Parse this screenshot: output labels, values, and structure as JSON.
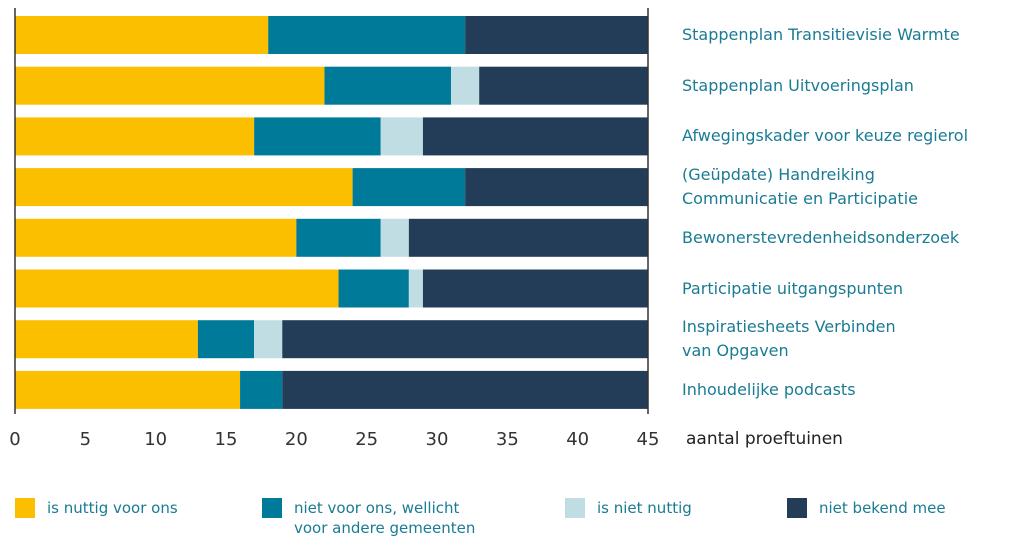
{
  "chart_data": {
    "type": "stacked-bar-horizontal",
    "categories": [
      "Stappenplan Transitievisie Warmte",
      "Stappenplan Uitvoeringsplan",
      "Afwegingskader voor keuze regierol",
      "(Geüpdate) Handreiking\nCommunicatie en Participatie",
      "Bewonerstevredenheidsonderzoek",
      "Participatie uitgangspunten",
      "Inspiratiesheets Verbinden\nvan Opgaven",
      "Inhoudelijke podcasts"
    ],
    "series": [
      {
        "name": "is nuttig voor ons",
        "color": "#fbbf00",
        "values": [
          18,
          22,
          17,
          24,
          20,
          23,
          13,
          16
        ]
      },
      {
        "name": "niet voor ons, wellicht\nvoor andere gemeenten",
        "color": "#007a99",
        "values": [
          14,
          9,
          9,
          8,
          6,
          5,
          4,
          3
        ]
      },
      {
        "name": "is niet nuttig",
        "color": "#c0dde4",
        "values": [
          0,
          2,
          3,
          0,
          2,
          1,
          2,
          0
        ]
      },
      {
        "name": "niet bekend  mee",
        "color": "#233c58",
        "values": [
          13,
          12,
          16,
          13,
          17,
          16,
          26,
          26
        ]
      }
    ],
    "xlabel": "aantal proeftuinen",
    "xlim": [
      0,
      45
    ],
    "xticks": [
      0,
      5,
      10,
      15,
      20,
      25,
      30,
      35,
      40,
      45
    ]
  }
}
